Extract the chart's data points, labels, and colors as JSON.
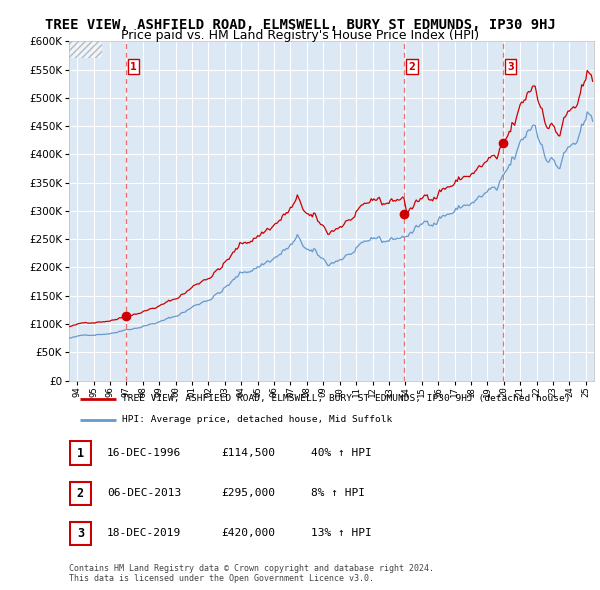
{
  "title": "TREE VIEW, ASHFIELD ROAD, ELMSWELL, BURY ST EDMUNDS, IP30 9HJ",
  "subtitle": "Price paid vs. HM Land Registry's House Price Index (HPI)",
  "legend_line1": "TREE VIEW, ASHFIELD ROAD, ELMSWELL, BURY ST EDMUNDS, IP30 9HJ (detached house)",
  "legend_line2": "HPI: Average price, detached house, Mid Suffolk",
  "table_rows": [
    {
      "num": "1",
      "date": "16-DEC-1996",
      "price": "£114,500",
      "hpi": "40% ↑ HPI"
    },
    {
      "num": "2",
      "date": "06-DEC-2013",
      "price": "£295,000",
      "hpi": "8% ↑ HPI"
    },
    {
      "num": "3",
      "date": "18-DEC-2019",
      "price": "£420,000",
      "hpi": "13% ↑ HPI"
    }
  ],
  "footer": "Contains HM Land Registry data © Crown copyright and database right 2024.\nThis data is licensed under the Open Government Licence v3.0.",
  "sale_dates": [
    1996.96,
    2013.93,
    2019.96
  ],
  "sale_prices": [
    114500,
    295000,
    420000
  ],
  "vline_dates": [
    1996.96,
    2013.93,
    2019.96
  ],
  "ylim": [
    0,
    600000
  ],
  "xlim_start": 1993.5,
  "xlim_end": 2025.5,
  "yticks": [
    0,
    50000,
    100000,
    150000,
    200000,
    250000,
    300000,
    350000,
    400000,
    450000,
    500000,
    550000,
    600000
  ],
  "background_color": "#dce9f5",
  "grid_color": "#ffffff",
  "red_line_color": "#cc0000",
  "blue_line_color": "#6699cc",
  "vline_color": "#e87070",
  "dot_color": "#cc0000",
  "title_fontsize": 10,
  "subtitle_fontsize": 9
}
